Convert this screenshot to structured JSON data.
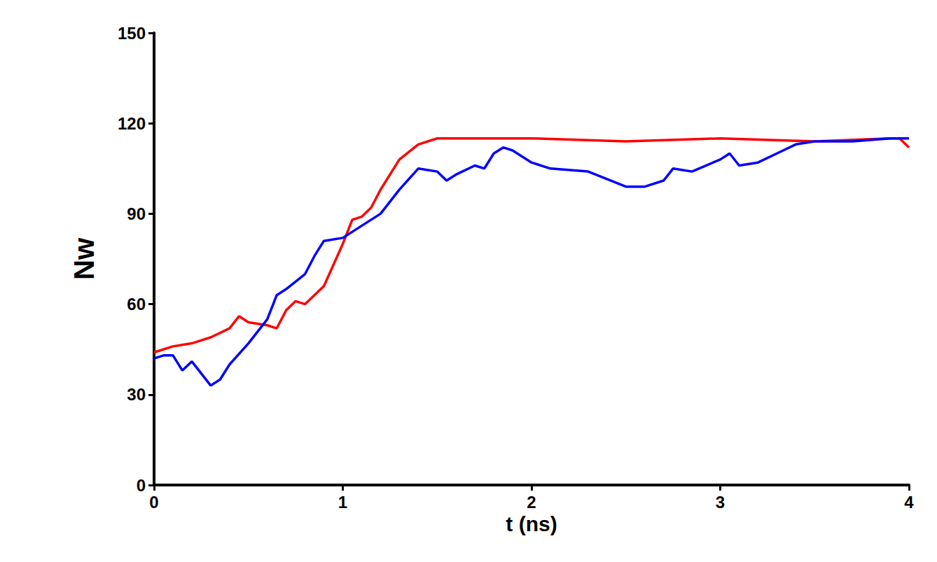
{
  "chart_data": {
    "type": "line",
    "x_label": "t (ns)",
    "y_label": "Nw",
    "xlim": [
      0,
      4
    ],
    "xticks": [
      0,
      1,
      2,
      3,
      4
    ],
    "ylim": [
      0,
      150
    ],
    "yticks": [
      0,
      30,
      60,
      90,
      120,
      150
    ],
    "grid": false,
    "series": [
      {
        "color": "#ff0000",
        "line_style": "solid",
        "x": [
          0,
          0.1,
          0.2,
          0.3,
          0.4,
          0.45,
          0.5,
          0.6,
          0.65,
          0.7,
          0.75,
          0.8,
          0.9,
          1.0,
          1.05,
          1.1,
          1.15,
          1.2,
          1.3,
          1.4,
          1.5,
          1.6,
          2.0,
          2.5,
          3.0,
          3.5,
          3.9,
          3.95,
          4.0
        ],
        "values": [
          44,
          46,
          47,
          49,
          52,
          56,
          54,
          53,
          52,
          58,
          61,
          60,
          66,
          80,
          88,
          89,
          92,
          98,
          108,
          113,
          115,
          115,
          115,
          114,
          115,
          114,
          115,
          115,
          112
        ]
      },
      {
        "color": "#0000ff",
        "line_style": "solid",
        "x": [
          0,
          0.05,
          0.1,
          0.15,
          0.2,
          0.25,
          0.3,
          0.35,
          0.4,
          0.5,
          0.6,
          0.65,
          0.7,
          0.8,
          0.85,
          0.9,
          1.0,
          1.1,
          1.2,
          1.3,
          1.4,
          1.5,
          1.55,
          1.6,
          1.7,
          1.75,
          1.8,
          1.85,
          1.9,
          2.0,
          2.1,
          2.3,
          2.5,
          2.6,
          2.7,
          2.75,
          2.85,
          3.0,
          3.05,
          3.1,
          3.2,
          3.3,
          3.4,
          3.5,
          3.7,
          3.9,
          3.95,
          4.0
        ],
        "values": [
          42,
          43,
          43,
          38,
          41,
          37,
          33,
          35,
          40,
          47,
          55,
          63,
          65,
          70,
          76,
          81,
          82,
          86,
          90,
          98,
          105,
          104,
          101,
          103,
          106,
          105,
          110,
          112,
          111,
          107,
          105,
          104,
          99,
          99,
          101,
          105,
          104,
          108,
          110,
          106,
          107,
          110,
          113,
          114,
          114,
          115,
          115,
          115
        ]
      }
    ]
  }
}
